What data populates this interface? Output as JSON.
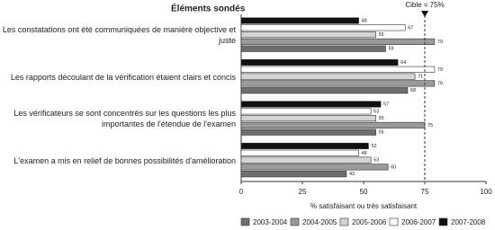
{
  "chart_data": {
    "type": "hbar",
    "header": "Éléments sondés",
    "categories": [
      "Les constatations ont été communiquées de  manière objective et juste",
      "Les rapports découlant de la vérification étaient clairs et concis",
      "Les vérificateurs se sont concentrés sur les questions les plus importantes de l'étendue de l'examen",
      "L'examen a mis en relief de bonnes possibilités d'amélioration"
    ],
    "series": [
      {
        "name": "2003-2004",
        "color": "#6e6e6e",
        "values": [
          59,
          68,
          55,
          43
        ]
      },
      {
        "name": "2004-2005",
        "color": "#9a9a9a",
        "values": [
          79,
          79,
          75,
          60
        ]
      },
      {
        "name": "2005-2006",
        "color": "#d4d4d4",
        "values": [
          55,
          71,
          55,
          53
        ]
      },
      {
        "name": "2006-2007",
        "color": "#ffffff",
        "values": [
          67,
          79,
          53,
          48
        ]
      },
      {
        "name": "2007-2008",
        "color": "#111111",
        "values": [
          48,
          64,
          57,
          52
        ]
      }
    ],
    "xlim": [
      0,
      100
    ],
    "xticks": [
      0,
      25,
      50,
      75,
      100
    ],
    "xlabel": "% satisfaisant ou très satisfaisant",
    "target": 75,
    "target_label": "Cible = 75%"
  }
}
